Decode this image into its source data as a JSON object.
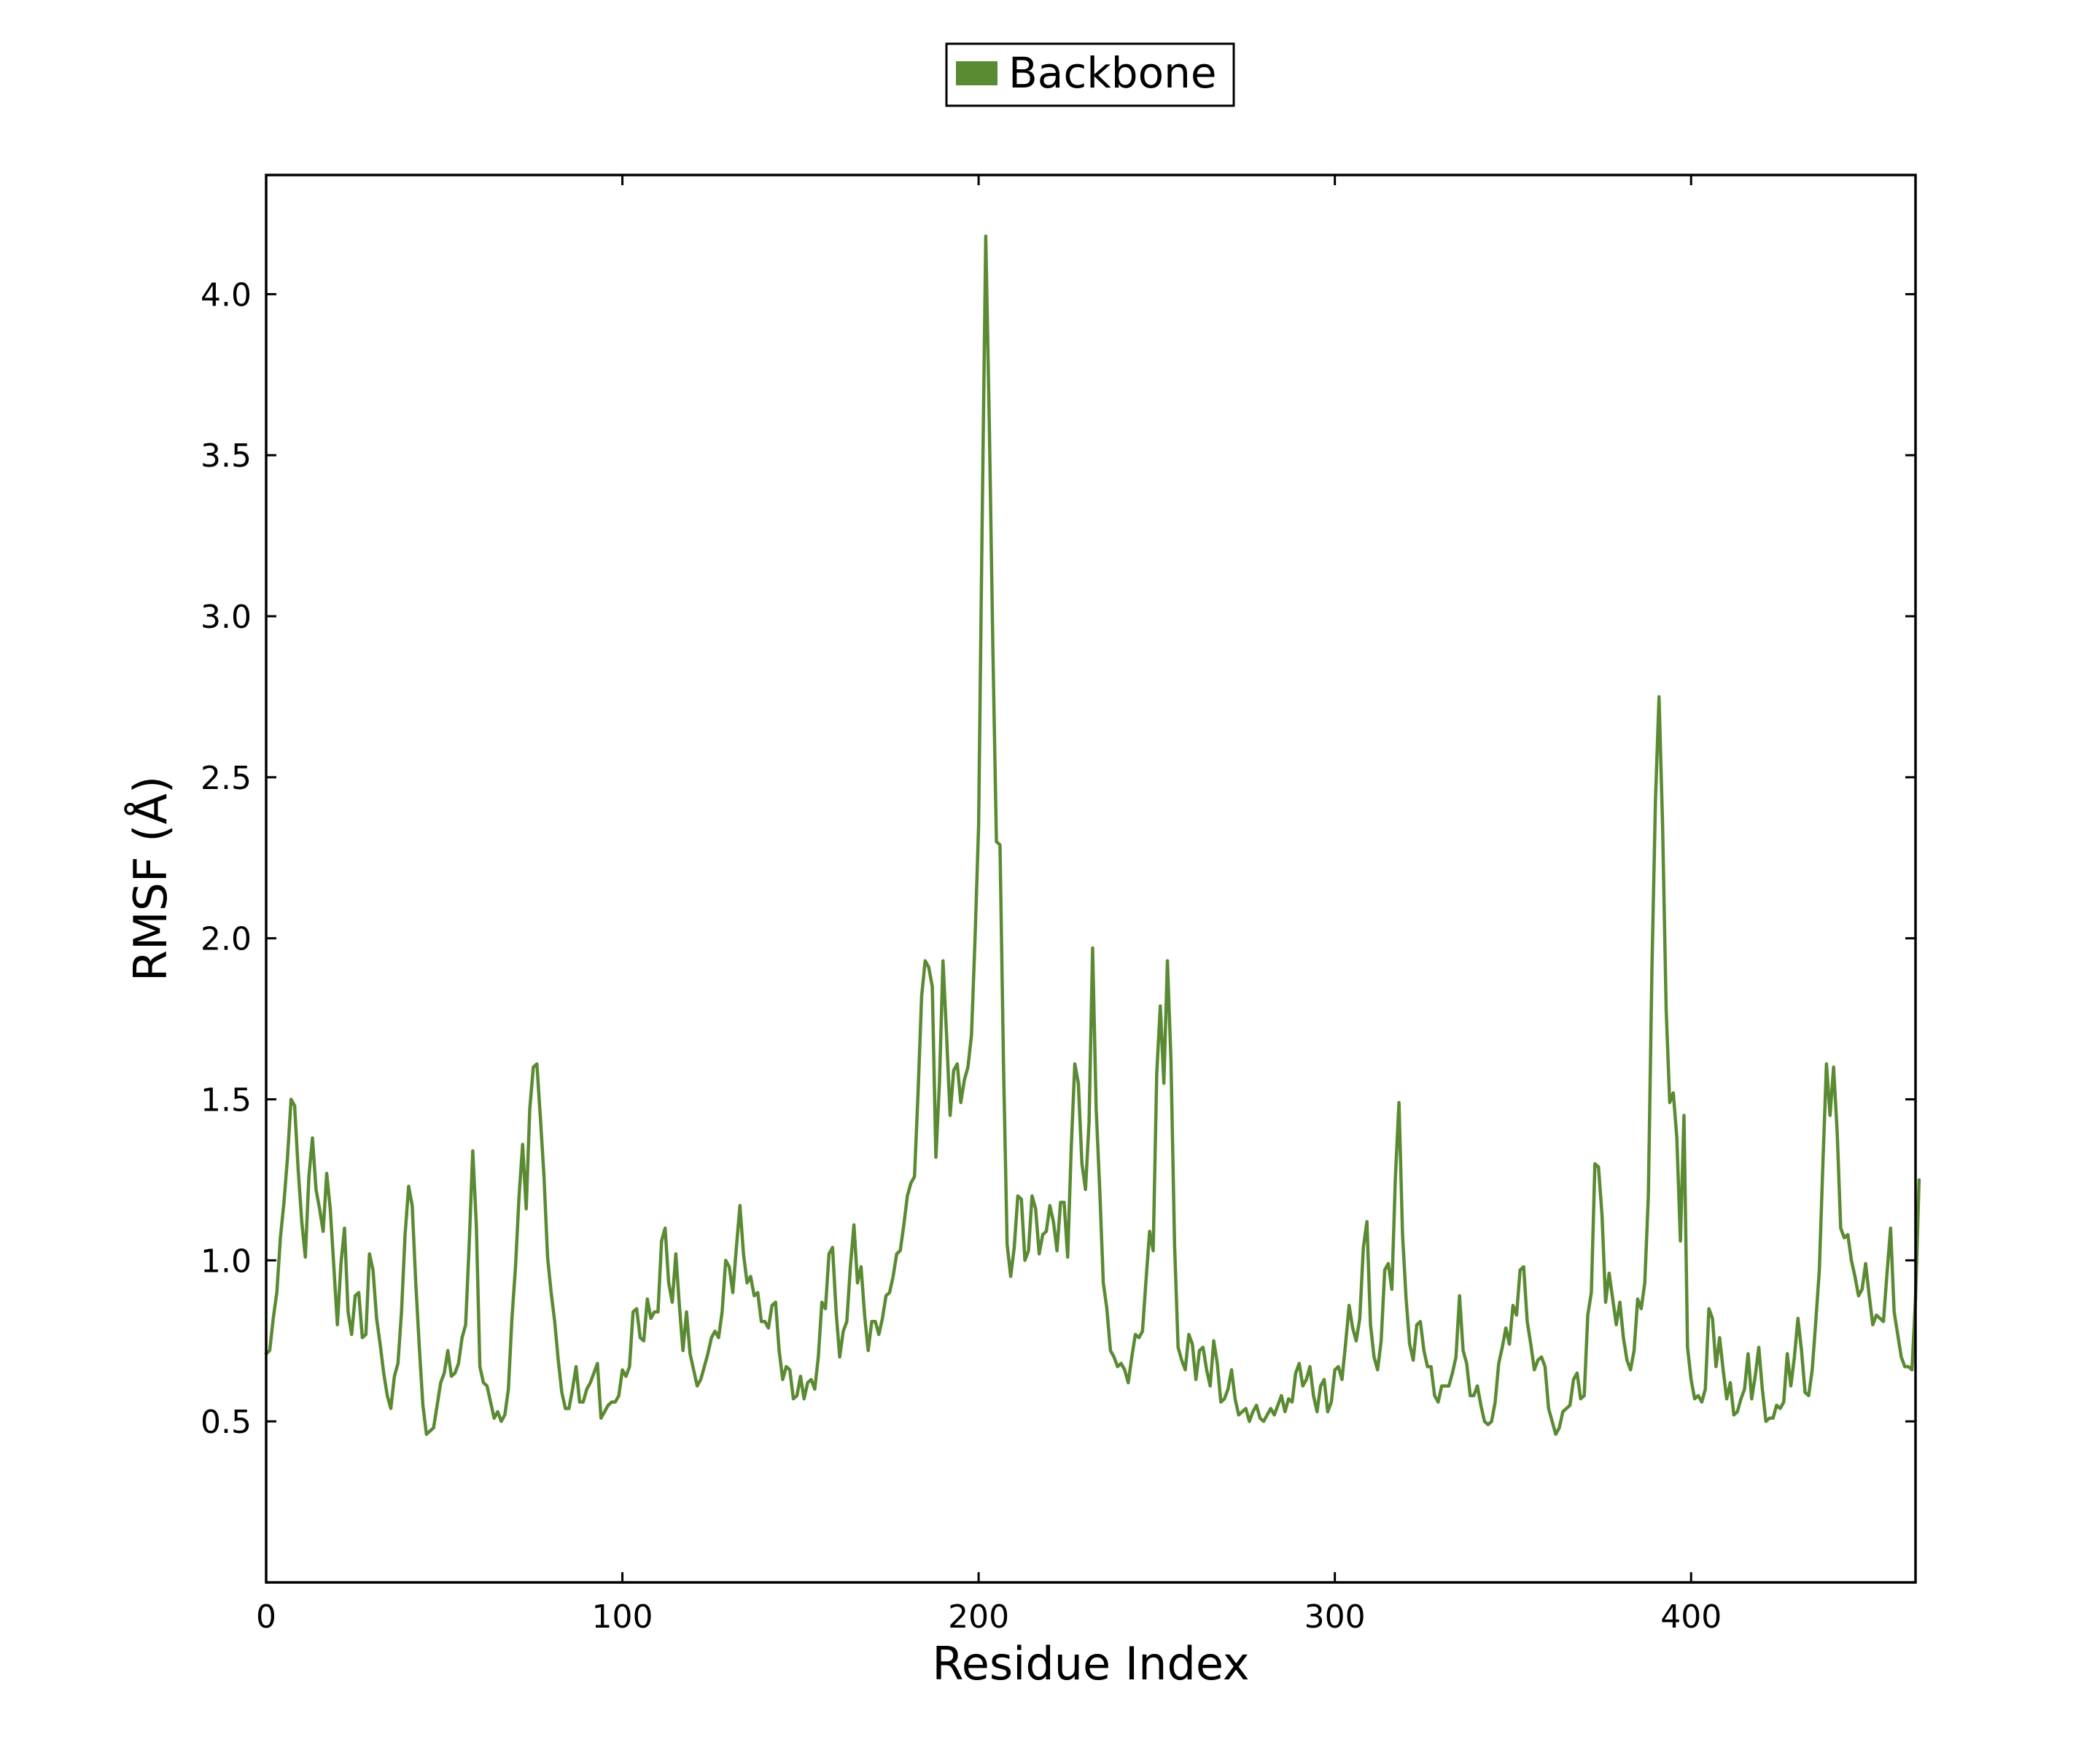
{
  "chart_data": {
    "type": "line",
    "title": "",
    "xlabel": "Residue Index",
    "ylabel": "RMSF (Å)",
    "xlim": [
      0,
      463
    ],
    "ylim": [
      0.0,
      4.37
    ],
    "xticks": [
      0,
      100,
      200,
      300,
      400
    ],
    "yticks": [
      0.5,
      1.0,
      1.5,
      2.0,
      2.5,
      3.0,
      3.5,
      4.0
    ],
    "xtick_labels": [
      "0",
      "100",
      "200",
      "300",
      "400"
    ],
    "ytick_labels": [
      "0.5",
      "1.0",
      "1.5",
      "2.0",
      "2.5",
      "3.0",
      "3.5",
      "4.0"
    ],
    "grid": false,
    "legend_position": "top-center",
    "series": [
      {
        "name": "Backbone",
        "color": "#5a8a32",
        "x_start": 0,
        "x_step": 1,
        "values": [
          0.71,
          0.72,
          0.82,
          0.9,
          1.07,
          1.18,
          1.32,
          1.5,
          1.48,
          1.28,
          1.12,
          1.01,
          1.26,
          1.38,
          1.22,
          1.16,
          1.09,
          1.27,
          1.16,
          0.98,
          0.8,
          0.99,
          1.1,
          0.84,
          0.77,
          0.89,
          0.9,
          0.76,
          0.77,
          1.02,
          0.97,
          0.82,
          0.74,
          0.65,
          0.58,
          0.54,
          0.64,
          0.68,
          0.84,
          1.08,
          1.23,
          1.17,
          0.93,
          0.73,
          0.55,
          0.46,
          0.47,
          0.48,
          0.55,
          0.62,
          0.65,
          0.72,
          0.64,
          0.65,
          0.68,
          0.76,
          0.8,
          1.05,
          1.34,
          1.11,
          0.67,
          0.62,
          0.61,
          0.56,
          0.51,
          0.53,
          0.5,
          0.52,
          0.6,
          0.82,
          0.98,
          1.2,
          1.36,
          1.16,
          1.47,
          1.6,
          1.61,
          1.44,
          1.26,
          1.01,
          0.9,
          0.81,
          0.69,
          0.59,
          0.54,
          0.54,
          0.6,
          0.67,
          0.56,
          0.56,
          0.6,
          0.62,
          0.65,
          0.68,
          0.51,
          0.53,
          0.55,
          0.56,
          0.56,
          0.58,
          0.66,
          0.64,
          0.67,
          0.84,
          0.85,
          0.76,
          0.75,
          0.88,
          0.82,
          0.84,
          0.84,
          1.06,
          1.1,
          0.93,
          0.87,
          1.02,
          0.86,
          0.72,
          0.84,
          0.71,
          0.66,
          0.61,
          0.63,
          0.67,
          0.71,
          0.76,
          0.78,
          0.76,
          0.84,
          1.0,
          0.98,
          0.9,
          1.04,
          1.17,
          1.02,
          0.93,
          0.95,
          0.89,
          0.9,
          0.81,
          0.81,
          0.79,
          0.86,
          0.87,
          0.72,
          0.63,
          0.67,
          0.66,
          0.57,
          0.58,
          0.64,
          0.57,
          0.62,
          0.63,
          0.6,
          0.7,
          0.87,
          0.85,
          1.02,
          1.04,
          0.84,
          0.7,
          0.78,
          0.81,
          0.98,
          1.11,
          0.93,
          0.98,
          0.83,
          0.72,
          0.81,
          0.81,
          0.77,
          0.82,
          0.89,
          0.9,
          0.95,
          1.02,
          1.03,
          1.11,
          1.2,
          1.24,
          1.26,
          1.52,
          1.82,
          1.93,
          1.91,
          1.85,
          1.32,
          1.55,
          1.93,
          1.7,
          1.45,
          1.59,
          1.61,
          1.49,
          1.56,
          1.6,
          1.7,
          2.0,
          2.35,
          3.3,
          4.18,
          3.6,
          2.9,
          2.3,
          2.29,
          1.6,
          1.05,
          0.95,
          1.04,
          1.2,
          1.19,
          1.0,
          1.03,
          1.2,
          1.16,
          1.02,
          1.08,
          1.09,
          1.17,
          1.12,
          1.03,
          1.18,
          1.18,
          1.01,
          1.35,
          1.61,
          1.55,
          1.3,
          1.22,
          1.43,
          1.97,
          1.47,
          1.22,
          0.93,
          0.85,
          0.72,
          0.7,
          0.67,
          0.68,
          0.66,
          0.62,
          0.7,
          0.77,
          0.76,
          0.78,
          0.94,
          1.09,
          1.03,
          1.58,
          1.79,
          1.55,
          1.93,
          1.62,
          1.05,
          0.73,
          0.69,
          0.66,
          0.77,
          0.74,
          0.63,
          0.72,
          0.73,
          0.66,
          0.61,
          0.75,
          0.68,
          0.56,
          0.57,
          0.6,
          0.66,
          0.57,
          0.52,
          0.53,
          0.54,
          0.5,
          0.53,
          0.55,
          0.51,
          0.5,
          0.52,
          0.54,
          0.52,
          0.55,
          0.58,
          0.53,
          0.57,
          0.56,
          0.65,
          0.68,
          0.61,
          0.63,
          0.67,
          0.58,
          0.53,
          0.61,
          0.63,
          0.53,
          0.56,
          0.66,
          0.67,
          0.63,
          0.74,
          0.86,
          0.79,
          0.75,
          0.82,
          1.04,
          1.12,
          0.8,
          0.7,
          0.66,
          0.75,
          0.97,
          0.99,
          0.91,
          1.26,
          1.49,
          1.08,
          0.88,
          0.74,
          0.69,
          0.8,
          0.81,
          0.72,
          0.67,
          0.67,
          0.58,
          0.56,
          0.61,
          0.61,
          0.61,
          0.65,
          0.7,
          0.89,
          0.72,
          0.68,
          0.58,
          0.58,
          0.61,
          0.55,
          0.5,
          0.49,
          0.5,
          0.56,
          0.68,
          0.73,
          0.79,
          0.74,
          0.86,
          0.83,
          0.97,
          0.98,
          0.81,
          0.74,
          0.66,
          0.69,
          0.7,
          0.67,
          0.54,
          0.5,
          0.46,
          0.48,
          0.53,
          0.54,
          0.55,
          0.63,
          0.65,
          0.57,
          0.58,
          0.83,
          0.9,
          1.3,
          1.29,
          1.14,
          0.87,
          0.96,
          0.88,
          0.8,
          0.87,
          0.76,
          0.69,
          0.66,
          0.72,
          0.88,
          0.85,
          0.93,
          1.2,
          1.9,
          2.43,
          2.75,
          2.35,
          1.78,
          1.49,
          1.52,
          1.38,
          1.06,
          1.45,
          0.73,
          0.63,
          0.57,
          0.58,
          0.56,
          0.6,
          0.85,
          0.82,
          0.67,
          0.76,
          0.66,
          0.57,
          0.62,
          0.52,
          0.53,
          0.57,
          0.6,
          0.71,
          0.57,
          0.64,
          0.73,
          0.6,
          0.5,
          0.51,
          0.51,
          0.55,
          0.54,
          0.56,
          0.71,
          0.61,
          0.7,
          0.82,
          0.72,
          0.59,
          0.58,
          0.66,
          0.81,
          0.97,
          1.3,
          1.61,
          1.45,
          1.6,
          1.4,
          1.1,
          1.07,
          1.08,
          1.0,
          0.95,
          0.89,
          0.91,
          0.99,
          0.89,
          0.8,
          0.83,
          0.82,
          0.81,
          0.96,
          1.1,
          0.84,
          0.77,
          0.7,
          0.67,
          0.67,
          0.66,
          0.88,
          1.25
        ]
      }
    ]
  }
}
